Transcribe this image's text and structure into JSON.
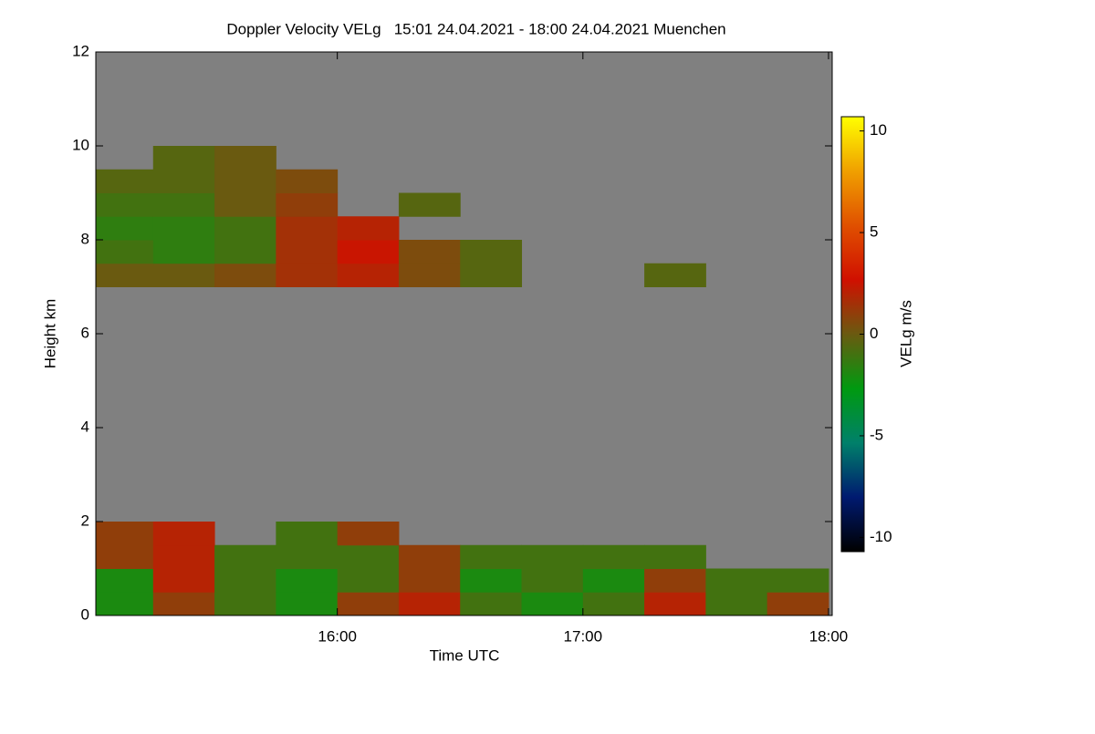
{
  "chart_data": {
    "type": "heatmap",
    "title": "Doppler Velocity VELg   15:01 24.04.2021 - 18:00 24.04.2021 Muenchen",
    "x_label": "Time UTC",
    "y_label": "Height km",
    "colorbar_label": "VELg m/s",
    "xlim": [
      15.0167,
      18.015
    ],
    "xticks": [
      {
        "value": 16,
        "label": "16:00"
      },
      {
        "value": 17,
        "label": "17:00"
      },
      {
        "value": 18,
        "label": "18:00"
      }
    ],
    "ylim": [
      0,
      12
    ],
    "yticks": [
      0,
      2,
      4,
      6,
      8,
      10,
      12
    ],
    "zlim": [
      -10.7,
      10.7
    ],
    "zticks": [
      -10,
      -5,
      0,
      5,
      10
    ],
    "background": "#808080",
    "colormap": [
      "#000000",
      "#001a70",
      "#00806a",
      "#009a10",
      "#6a5a10",
      "#d01000",
      "#e05000",
      "#f0a000",
      "#ffff00"
    ],
    "x": [
      15.125,
      15.375,
      15.625,
      15.875,
      16.125,
      16.375,
      16.625,
      16.875,
      17.125,
      17.375,
      17.625,
      17.875
    ],
    "y": [
      0.25,
      0.75,
      1.25,
      1.75,
      2.25,
      2.75,
      3.25,
      3.75,
      4.25,
      4.75,
      5.25,
      5.75,
      6.25,
      6.75,
      7.25,
      7.75,
      8.25,
      8.75,
      9.25,
      9.75,
      10.25,
      10.75,
      11.25,
      11.75
    ],
    "z": [
      [
        -2,
        1,
        -1,
        -2,
        1,
        2,
        -1,
        -2,
        -1,
        2,
        -1,
        1
      ],
      [
        -2,
        2,
        -1,
        -2,
        -1,
        1,
        -2,
        -1,
        -2,
        1,
        -1,
        -1
      ],
      [
        1,
        2,
        -1,
        -1,
        -1,
        1,
        -1,
        -1,
        -1,
        -1,
        null,
        null
      ],
      [
        1,
        2,
        null,
        -1,
        1,
        null,
        null,
        null,
        null,
        null,
        null,
        null
      ],
      [
        null,
        null,
        null,
        null,
        null,
        null,
        null,
        null,
        null,
        null,
        null,
        null
      ],
      [
        null,
        null,
        null,
        null,
        null,
        null,
        null,
        null,
        null,
        null,
        null,
        null
      ],
      [
        null,
        null,
        null,
        null,
        null,
        null,
        null,
        null,
        null,
        null,
        null,
        null
      ],
      [
        null,
        null,
        null,
        null,
        null,
        null,
        null,
        null,
        null,
        null,
        null,
        null
      ],
      [
        null,
        null,
        null,
        null,
        null,
        null,
        null,
        null,
        null,
        null,
        null,
        null
      ],
      [
        null,
        null,
        null,
        null,
        null,
        null,
        null,
        null,
        null,
        null,
        null,
        null
      ],
      [
        null,
        null,
        null,
        null,
        null,
        null,
        null,
        null,
        null,
        null,
        null,
        null
      ],
      [
        null,
        null,
        null,
        null,
        null,
        null,
        null,
        null,
        null,
        null,
        null,
        null
      ],
      [
        null,
        null,
        null,
        null,
        null,
        null,
        null,
        null,
        null,
        null,
        null,
        null
      ],
      [
        null,
        null,
        null,
        null,
        null,
        null,
        null,
        null,
        null,
        null,
        null,
        null
      ],
      [
        0,
        0,
        0.5,
        1.5,
        2,
        0.5,
        -0.5,
        null,
        null,
        -0.5,
        null,
        null
      ],
      [
        -1,
        -1.5,
        -1,
        1.5,
        2.5,
        0.5,
        -0.5,
        null,
        null,
        null,
        null,
        null
      ],
      [
        -1.5,
        -1.5,
        -1,
        1.5,
        2,
        null,
        null,
        null,
        null,
        null,
        null,
        null
      ],
      [
        -1,
        -1,
        0,
        1,
        null,
        -0.5,
        null,
        null,
        null,
        null,
        null,
        null
      ],
      [
        -0.5,
        -0.5,
        0,
        0.5,
        null,
        null,
        null,
        null,
        null,
        null,
        null,
        null
      ],
      [
        null,
        -0.5,
        0,
        null,
        null,
        null,
        null,
        null,
        null,
        null,
        null,
        null
      ],
      [
        null,
        null,
        null,
        null,
        null,
        null,
        null,
        null,
        null,
        null,
        null,
        null
      ],
      [
        null,
        null,
        null,
        null,
        null,
        null,
        null,
        null,
        null,
        null,
        null,
        null
      ],
      [
        null,
        null,
        null,
        null,
        null,
        null,
        null,
        null,
        null,
        null,
        null,
        null
      ],
      [
        null,
        null,
        null,
        null,
        null,
        null,
        null,
        null,
        null,
        null,
        null,
        null
      ]
    ]
  }
}
